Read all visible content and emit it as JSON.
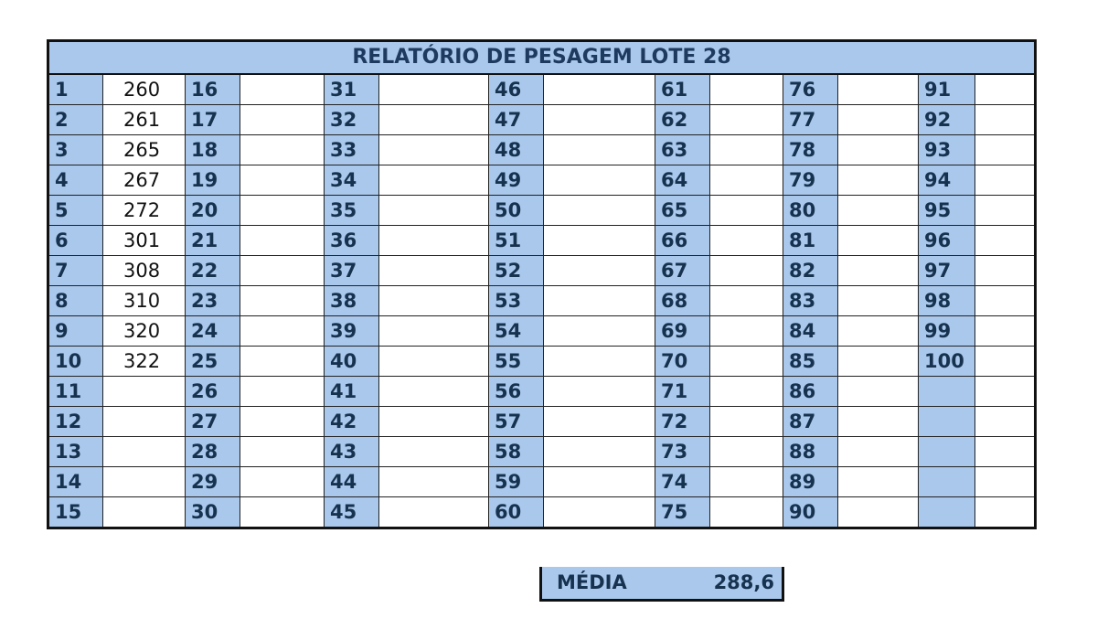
{
  "title": "RELATÓRIO DE PESAGEM LOTE 28",
  "columns": [
    {
      "numbers": [
        "1",
        "2",
        "3",
        "4",
        "5",
        "6",
        "7",
        "8",
        "9",
        "10",
        "11",
        "12",
        "13",
        "14",
        "15"
      ],
      "weights": [
        "260",
        "261",
        "265",
        "267",
        "272",
        "301",
        "308",
        "310",
        "320",
        "322",
        "",
        "",
        "",
        "",
        ""
      ]
    },
    {
      "numbers": [
        "16",
        "17",
        "18",
        "19",
        "20",
        "21",
        "22",
        "23",
        "24",
        "25",
        "26",
        "27",
        "28",
        "29",
        "30"
      ],
      "weights": [
        "",
        "",
        "",
        "",
        "",
        "",
        "",
        "",
        "",
        "",
        "",
        "",
        "",
        "",
        ""
      ]
    },
    {
      "numbers": [
        "31",
        "32",
        "33",
        "34",
        "35",
        "36",
        "37",
        "38",
        "39",
        "40",
        "41",
        "42",
        "43",
        "44",
        "45"
      ],
      "weights": [
        "",
        "",
        "",
        "",
        "",
        "",
        "",
        "",
        "",
        "",
        "",
        "",
        "",
        "",
        ""
      ]
    },
    {
      "numbers": [
        "46",
        "47",
        "48",
        "49",
        "50",
        "51",
        "52",
        "53",
        "54",
        "55",
        "56",
        "57",
        "58",
        "59",
        "60"
      ],
      "weights": [
        "",
        "",
        "",
        "",
        "",
        "",
        "",
        "",
        "",
        "",
        "",
        "",
        "",
        "",
        ""
      ]
    },
    {
      "numbers": [
        "61",
        "62",
        "63",
        "64",
        "65",
        "66",
        "67",
        "68",
        "69",
        "70",
        "71",
        "72",
        "73",
        "74",
        "75"
      ],
      "weights": [
        "",
        "",
        "",
        "",
        "",
        "",
        "",
        "",
        "",
        "",
        "",
        "",
        "",
        "",
        ""
      ]
    },
    {
      "numbers": [
        "76",
        "77",
        "78",
        "79",
        "80",
        "81",
        "82",
        "83",
        "84",
        "85",
        "86",
        "87",
        "88",
        "89",
        "90"
      ],
      "weights": [
        "",
        "",
        "",
        "",
        "",
        "",
        "",
        "",
        "",
        "",
        "",
        "",
        "",
        "",
        ""
      ]
    },
    {
      "numbers": [
        "91",
        "92",
        "93",
        "94",
        "95",
        "96",
        "97",
        "98",
        "99",
        "100",
        "",
        "",
        "",
        "",
        ""
      ],
      "weights": [
        "",
        "",
        "",
        "",
        "",
        "",
        "",
        "",
        "",
        "",
        "",
        "",
        "",
        "",
        ""
      ]
    }
  ],
  "summary": {
    "label": "MÉDIA",
    "value": "288,6"
  }
}
